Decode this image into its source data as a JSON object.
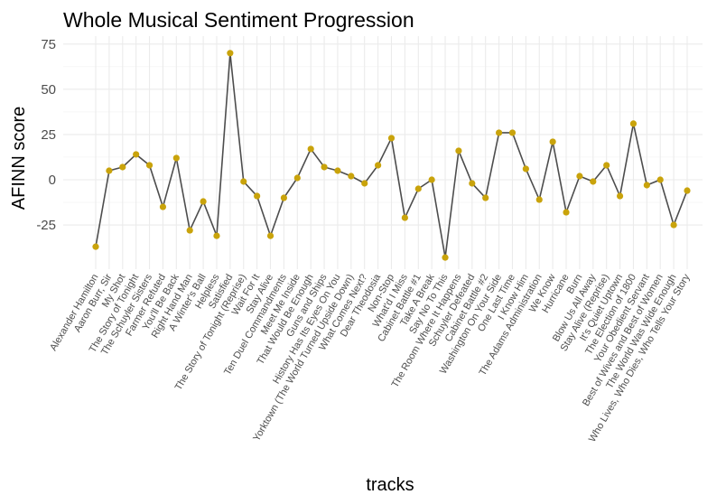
{
  "chart_data": {
    "type": "line",
    "title": "Whole Musical Sentiment Progression",
    "xlabel": "tracks",
    "ylabel": "AFINN score",
    "ylim": [
      -45,
      77
    ],
    "yticks": [
      -25,
      0,
      25,
      50,
      75
    ],
    "ytick_labels": [
      "-25",
      "0",
      "25",
      "50",
      "75"
    ],
    "grid": true,
    "legend": "none",
    "colors": {
      "line": "#4d4d4d",
      "point": "#c9a30b"
    },
    "categories": [
      "Alexander Hamilton",
      "Aaron Burr, Sir",
      "My Shot",
      "The Story of Tonight",
      "The Schuyler Sisters",
      "Farmer Refuted",
      "You'll Be Back",
      "Right Hand Man",
      "A Winter's Ball",
      "Helpless",
      "Satisfied",
      "The Story of Tonight (Reprise)",
      "Wait For It",
      "Stay Alive",
      "Ten Duel Commandments",
      "Meet Me Inside",
      "That Would Be Enough",
      "Guns and Ships",
      "History Has Its Eyes On You",
      "Yorktown (The World Turned Upside Down)",
      "What Comes Next?",
      "Dear Theodosia",
      "Non-Stop",
      "What'd I Miss",
      "Cabinet Battle #1",
      "Take A Break",
      "Say No To This",
      "The Room Where It Happens",
      "Schuyler Defeated",
      "Cabinet Battle #2",
      "Washington On Your Side",
      "One Last Time",
      "I Know Him",
      "The Adams Administration",
      "We Know",
      "Hurricane",
      "Burn",
      "Blow Us All Away",
      "Stay Alive (Reprise)",
      "It's Quiet Uptown",
      "The Election of 1800",
      "Your Obedient Servant",
      "Best of Wives and Best of Women",
      "The World Was Wide Enough",
      "Who Lives, Who Dies, Who Tells Your Story"
    ],
    "values": [
      -37,
      5,
      7,
      14,
      8,
      -15,
      12,
      -28,
      -12,
      -31,
      70,
      -1,
      -9,
      -31,
      -10,
      1,
      17,
      7,
      5,
      2,
      -2,
      8,
      23,
      -21,
      -5,
      0,
      -43,
      16,
      -2,
      -10,
      26,
      26,
      6,
      -11,
      21,
      -18,
      2,
      -1,
      8,
      -9,
      31,
      -3,
      0,
      -25,
      -6
    ]
  }
}
